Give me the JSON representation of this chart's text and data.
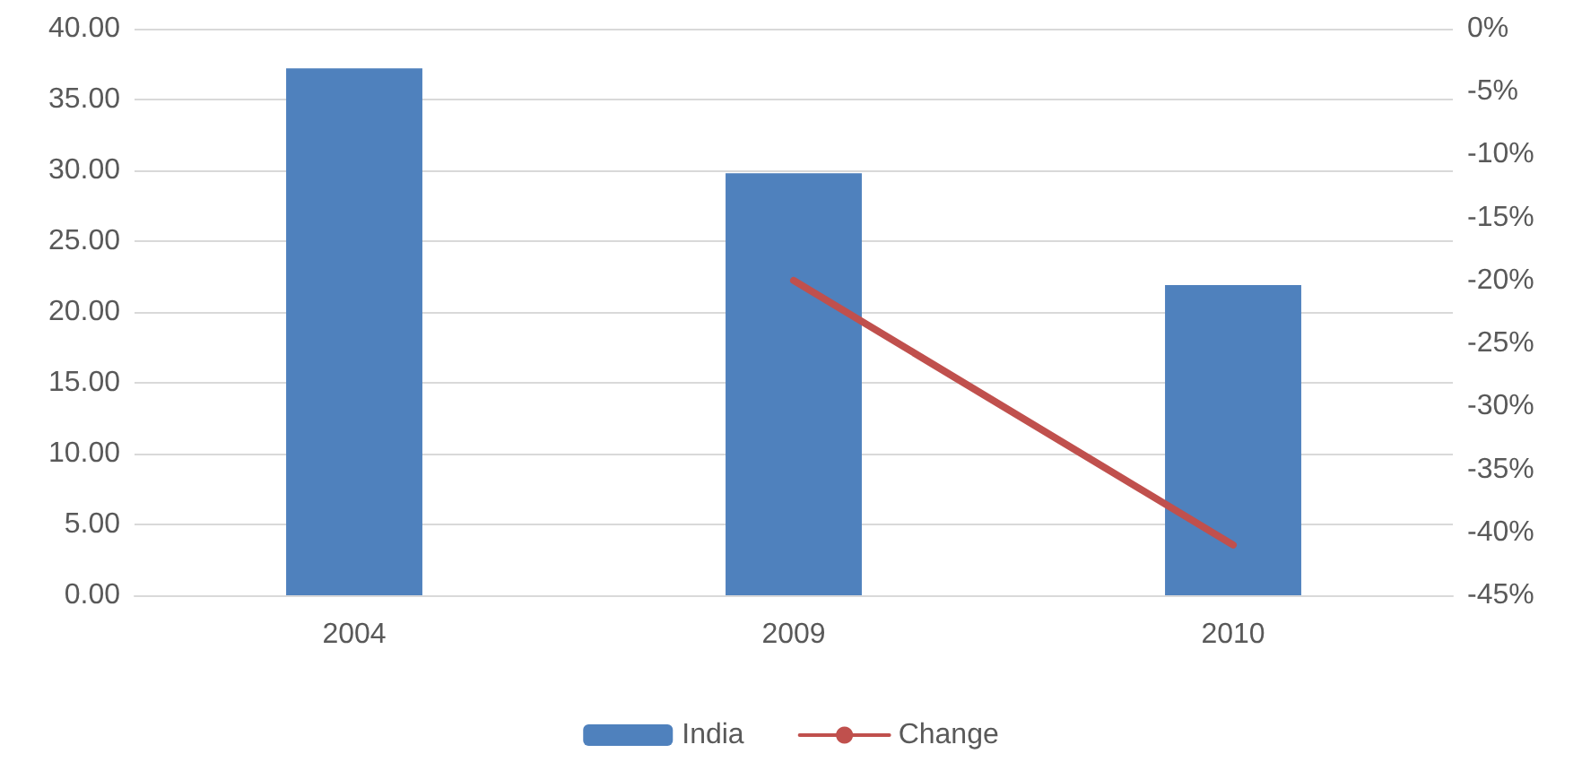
{
  "chart_data": {
    "type": "bar",
    "categories": [
      "2004",
      "2009",
      "2010"
    ],
    "series": [
      {
        "name": "India",
        "color": "#4f81bd",
        "values": [
          37.2,
          29.8,
          21.9
        ]
      },
      {
        "name": "Change",
        "type": "line",
        "axis": "y2",
        "color": "#c0504d",
        "values": [
          null,
          -20,
          -41
        ]
      }
    ],
    "ylim": [
      0,
      40
    ],
    "yticks": [
      {
        "value": 0,
        "label": "0.00"
      },
      {
        "value": 5,
        "label": "5.00"
      },
      {
        "value": 10,
        "label": "10.00"
      },
      {
        "value": 15,
        "label": "15.00"
      },
      {
        "value": 20,
        "label": "20.00"
      },
      {
        "value": 25,
        "label": "25.00"
      },
      {
        "value": 30,
        "label": "30.00"
      },
      {
        "value": 35,
        "label": "35.00"
      },
      {
        "value": 40,
        "label": "40.00"
      }
    ],
    "y2lim": [
      -45,
      0
    ],
    "y2ticks": [
      {
        "value": -45,
        "label": "-45%"
      },
      {
        "value": -40,
        "label": "-40%"
      },
      {
        "value": -35,
        "label": "-35%"
      },
      {
        "value": -30,
        "label": "-30%"
      },
      {
        "value": -25,
        "label": "-25%"
      },
      {
        "value": -20,
        "label": "-20%"
      },
      {
        "value": -15,
        "label": "-15%"
      },
      {
        "value": -10,
        "label": "-10%"
      },
      {
        "value": -5,
        "label": "-5%"
      },
      {
        "value": 0,
        "label": "0%"
      }
    ],
    "grid": "y",
    "legend": "bottom",
    "marker": "none",
    "line_style": "solid"
  }
}
